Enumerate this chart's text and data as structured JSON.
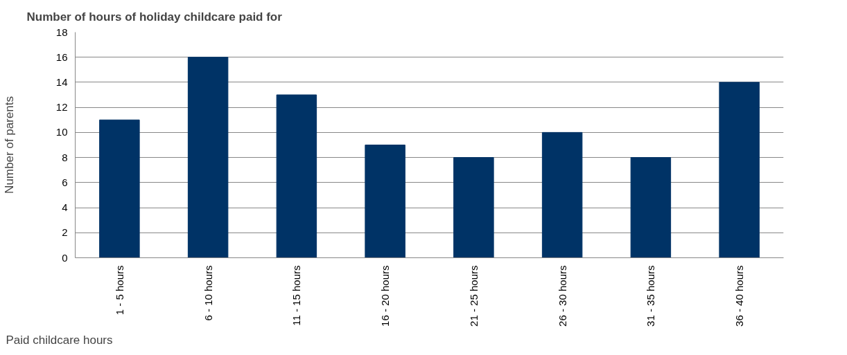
{
  "chart_data": {
    "type": "bar",
    "title": "Number of hours of holiday childcare paid for",
    "xlabel": "Paid childcare hours",
    "ylabel": "Number of parents",
    "categories": [
      "1 - 5 hours",
      "6 - 10 hours",
      "11 - 15 hours",
      "16 - 20 hours",
      "21 - 25 hours",
      "26 - 30 hours",
      "31 - 35 hours",
      "36 - 40 hours"
    ],
    "values": [
      11,
      16,
      13,
      9,
      8,
      10,
      8,
      14
    ],
    "color": "#003366",
    "ylim": [
      0,
      18
    ],
    "yticks": [
      0,
      2,
      4,
      6,
      8,
      10,
      12,
      14,
      16,
      18
    ],
    "grid": "y"
  }
}
